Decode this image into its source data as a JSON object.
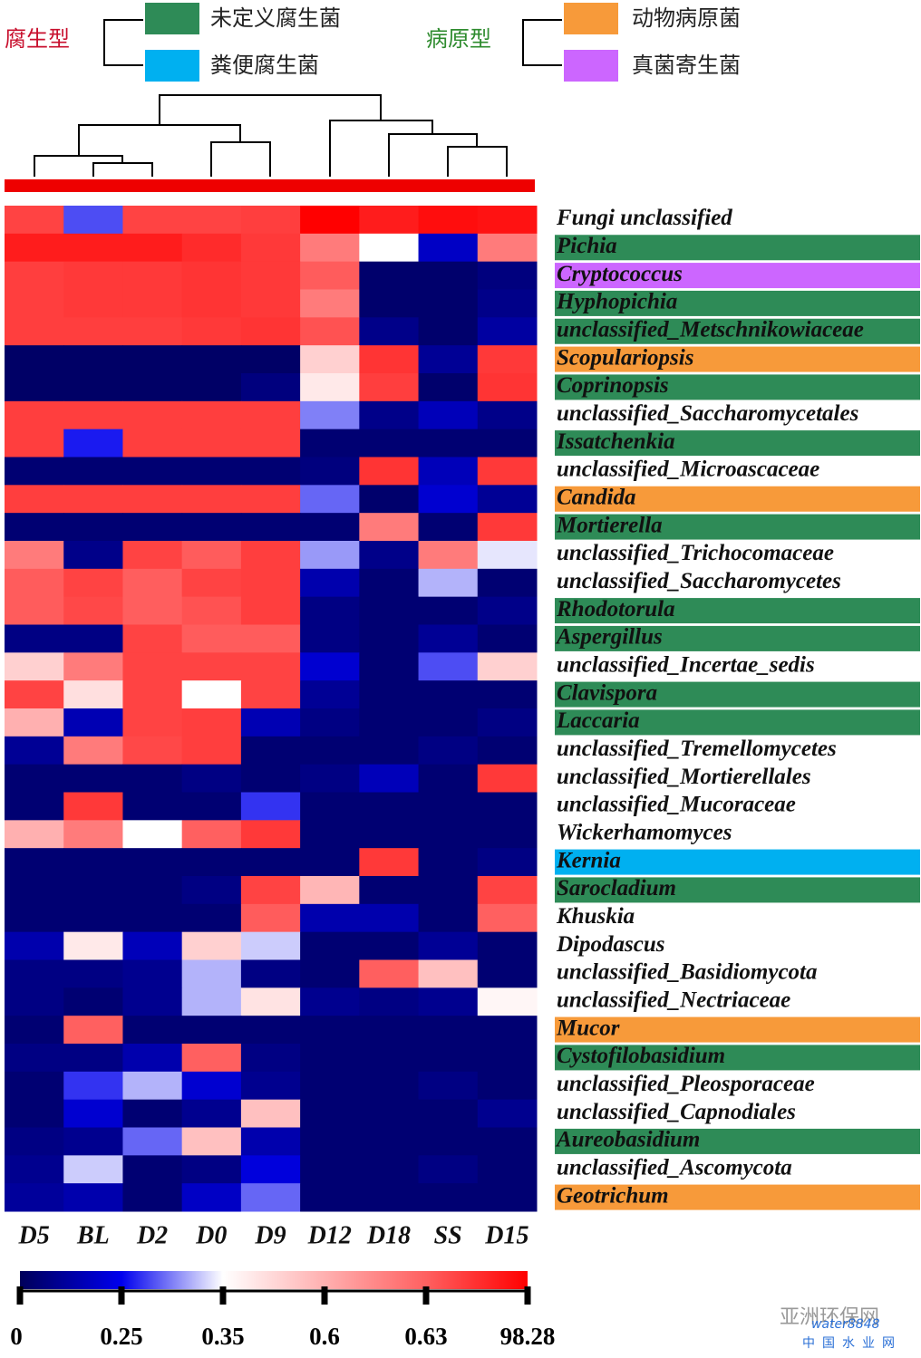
{
  "chart_data": {
    "type": "heatmap",
    "legend": [
      {
        "name": "腐生型",
        "color": "#c8102e",
        "items": [
          {
            "name": "未定义腐生菌",
            "color": "#2e8b57"
          },
          {
            "name": "粪便腐生菌",
            "color": "#00b0f0"
          }
        ]
      },
      {
        "name": "病原型",
        "color": "#2e8b2e",
        "items": [
          {
            "name": "动物病原菌",
            "color": "#f79a3a"
          },
          {
            "name": "真菌寄生菌",
            "color": "#cc66ff"
          }
        ]
      }
    ],
    "columns": [
      "D5",
      "BL",
      "D2",
      "D0",
      "D9",
      "D12",
      "D18",
      "SS",
      "D15"
    ],
    "rows": [
      "Fungi unclassified",
      "Pichia",
      "Cryptococcus",
      "Hyphopichia",
      "unclassified_Metschnikowiaceae",
      "Scopulariopsis",
      "Coprinopsis",
      "unclassified_Saccharomycetales",
      "Issatchenkia",
      "unclassified_Microascaceae",
      "Candida",
      "Mortierella",
      "unclassified_Trichocomaceae",
      "unclassified_Saccharomycetes",
      "Rhodotorula",
      "Aspergillus",
      "unclassified_Incertae_sedis",
      "Clavispora",
      "Laccaria",
      "unclassified_Tremellomycetes",
      "unclassified_Mortierellales",
      "unclassified_Mucoraceae",
      "Wickerhamomyces",
      "Kernia",
      "Sarocladium",
      "Khuskia",
      "Dipodascus",
      "unclassified_Basidiomycota",
      "unclassified_Nectriaceae",
      "Mucor",
      "Cystofilobasidium",
      "unclassified_Pleosporaceae",
      "unclassified_Capnodiales",
      "Aureobasidium",
      "unclassified_Ascomycota",
      "Geotrichum"
    ],
    "row_label_colors": [
      null,
      "#2e8b57",
      "#cc66ff",
      "#2e8b57",
      "#2e8b57",
      "#f79a3a",
      "#2e8b57",
      null,
      "#2e8b57",
      null,
      "#f79a3a",
      "#2e8b57",
      null,
      null,
      "#2e8b57",
      "#2e8b57",
      null,
      "#2e8b57",
      "#2e8b57",
      null,
      null,
      null,
      null,
      "#00b0f0",
      "#2e8b57",
      null,
      null,
      null,
      null,
      "#f79a3a",
      "#2e8b57",
      null,
      null,
      "#2e8b57",
      null,
      "#f79a3a"
    ],
    "values": [
      [
        30,
        0.28,
        30,
        30,
        35,
        98,
        70,
        85,
        80
      ],
      [
        70,
        70,
        70,
        55,
        40,
        0.62,
        0.35,
        0.18,
        0.62
      ],
      [
        35,
        40,
        40,
        45,
        40,
        5,
        0.03,
        0.03,
        0.06
      ],
      [
        35,
        40,
        40,
        45,
        40,
        0.62,
        0.03,
        0.03,
        0.08
      ],
      [
        35,
        35,
        35,
        40,
        45,
        15,
        0.08,
        0.03,
        0.12
      ],
      [
        0.02,
        0.02,
        0.02,
        0.02,
        0.02,
        0.5,
        45,
        0.1,
        40
      ],
      [
        0.02,
        0.02,
        0.02,
        0.02,
        0.06,
        0.42,
        35,
        0.03,
        45
      ],
      [
        35,
        35,
        35,
        35,
        35,
        0.3,
        0.08,
        0.16,
        0.08
      ],
      [
        35,
        0.26,
        35,
        35,
        35,
        0.04,
        0.04,
        0.04,
        0.04
      ],
      [
        0.04,
        0.04,
        0.04,
        0.04,
        0.04,
        0.06,
        45,
        0.16,
        40
      ],
      [
        35,
        35,
        35,
        35,
        35,
        0.29,
        0.03,
        0.2,
        0.1
      ],
      [
        0.04,
        0.04,
        0.04,
        0.04,
        0.04,
        0.04,
        0.62,
        0.04,
        40
      ],
      [
        0.62,
        0.08,
        30,
        5,
        35,
        0.31,
        0.08,
        0.62,
        0.34
      ],
      [
        5,
        30,
        3,
        30,
        35,
        0.14,
        0.04,
        0.32,
        0.04
      ],
      [
        5,
        25,
        3,
        15,
        35,
        0.07,
        0.04,
        0.04,
        0.08
      ],
      [
        0.07,
        0.07,
        30,
        5,
        5,
        0.07,
        0.04,
        0.1,
        0.04
      ],
      [
        0.5,
        0.62,
        30,
        30,
        30,
        0.2,
        0.04,
        0.28,
        0.5
      ],
      [
        30,
        0.45,
        30,
        0.35,
        30,
        0.1,
        0.04,
        0.04,
        0.04
      ],
      [
        0.6,
        0.15,
        30,
        35,
        0.15,
        0.07,
        0.04,
        0.04,
        0.07
      ],
      [
        0.1,
        0.62,
        25,
        35,
        0.04,
        0.04,
        0.04,
        0.07,
        0.04
      ],
      [
        0.04,
        0.04,
        0.04,
        0.07,
        0.04,
        0.07,
        0.16,
        0.04,
        40
      ],
      [
        0.04,
        40,
        0.04,
        0.04,
        0.27,
        0.04,
        0.04,
        0.04,
        0.04
      ],
      [
        0.6,
        0.62,
        0.35,
        0.63,
        40,
        0.04,
        0.04,
        0.04,
        0.04
      ],
      [
        0.04,
        0.04,
        0.04,
        0.04,
        0.04,
        0.04,
        40,
        0.04,
        0.07
      ],
      [
        0.04,
        0.04,
        0.04,
        0.07,
        30,
        0.58,
        0.04,
        0.04,
        30
      ],
      [
        0.04,
        0.04,
        0.04,
        0.04,
        5,
        0.14,
        0.14,
        0.04,
        1
      ],
      [
        0.14,
        0.42,
        0.16,
        0.5,
        0.33,
        0.04,
        0.04,
        0.1,
        0.04
      ],
      [
        0.07,
        0.07,
        0.09,
        0.32,
        0.07,
        0.04,
        2,
        0.55,
        0.04
      ],
      [
        0.07,
        0.04,
        0.09,
        0.32,
        0.44,
        0.09,
        0.07,
        0.09,
        0.38
      ],
      [
        0.04,
        0.63,
        0.04,
        0.04,
        0.04,
        0.04,
        0.04,
        0.04,
        0.04
      ],
      [
        0.07,
        0.07,
        0.14,
        0.63,
        0.07,
        0.04,
        0.04,
        0.04,
        0.04
      ],
      [
        0.04,
        0.27,
        0.32,
        0.2,
        0.09,
        0.04,
        0.04,
        0.07,
        0.04
      ],
      [
        0.04,
        0.2,
        0.04,
        0.09,
        0.55,
        0.04,
        0.04,
        0.04,
        0.09
      ],
      [
        0.07,
        0.09,
        0.29,
        0.55,
        0.14,
        0.04,
        0.04,
        0.04,
        0.04
      ],
      [
        0.09,
        0.33,
        0.04,
        0.07,
        0.22,
        0.04,
        0.04,
        0.07,
        0.04
      ],
      [
        0.11,
        0.14,
        0.04,
        0.18,
        0.29,
        0.04,
        0.04,
        0.04,
        0.04
      ]
    ],
    "colorbar_ticks": [
      0,
      0.25,
      0.35,
      0.6,
      0.63,
      98.28
    ],
    "colorscale": [
      "#00005a",
      "#0000ee",
      "#ffffff",
      "#ffb0b0",
      "#ff6060",
      "#ff0000"
    ],
    "watermark": [
      "亚洲环保网",
      "water8848",
      "中国水业网"
    ]
  }
}
